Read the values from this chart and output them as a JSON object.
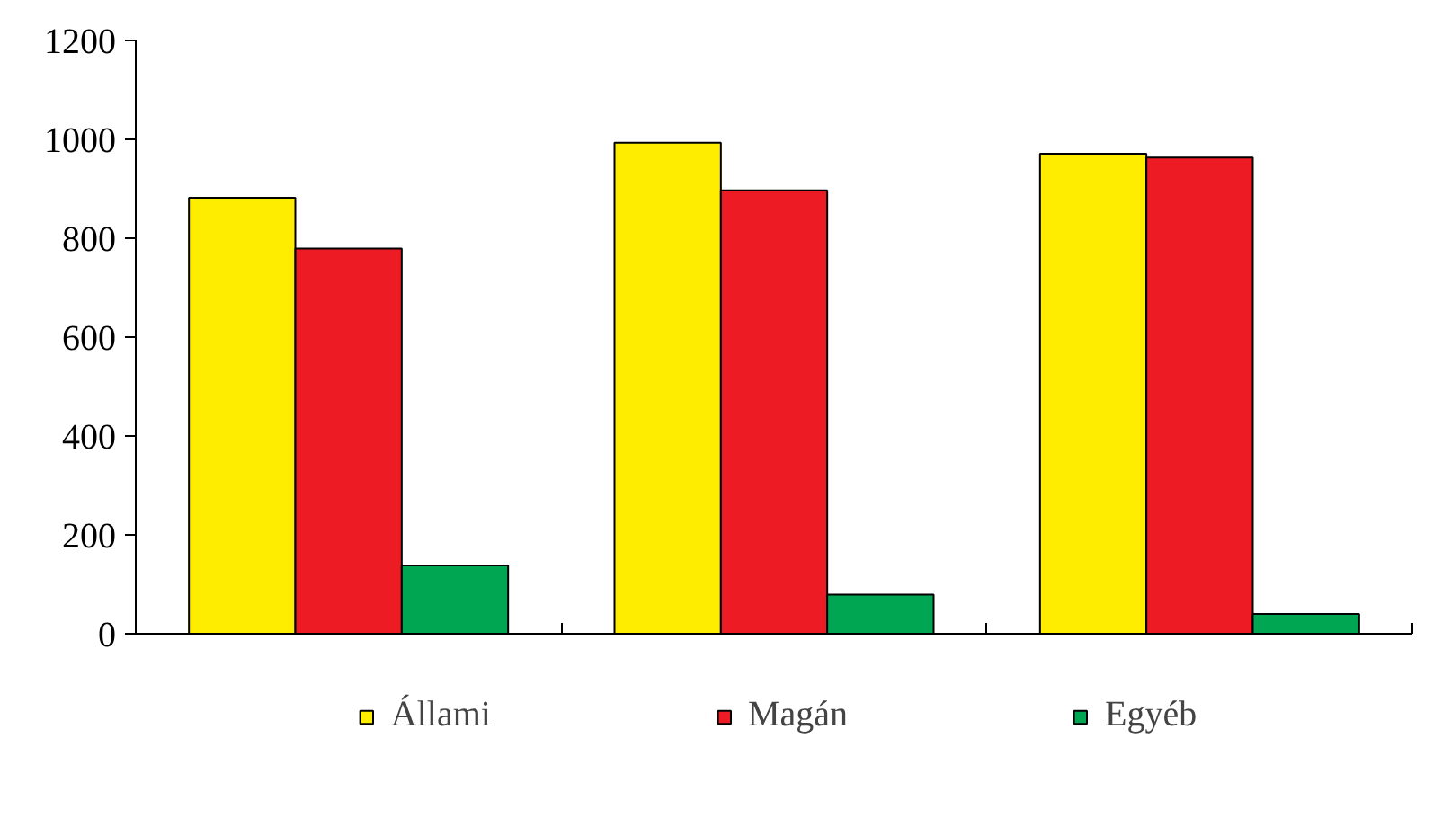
{
  "chart_data": {
    "type": "bar",
    "categories": [
      null,
      null,
      null
    ],
    "series": [
      {
        "name": "Állami",
        "color": "#ffed00",
        "values": [
          882,
          993,
          971
        ]
      },
      {
        "name": "Magán",
        "color": "#ed1c24",
        "values": [
          779,
          897,
          963
        ]
      },
      {
        "name": "Egyéb",
        "color": "#00a651",
        "values": [
          138,
          79,
          40
        ]
      }
    ],
    "ylim": [
      0,
      1200
    ],
    "yticks": [
      0,
      200,
      400,
      600,
      800,
      1000,
      1200
    ],
    "grid": false,
    "legend": "bottom"
  }
}
